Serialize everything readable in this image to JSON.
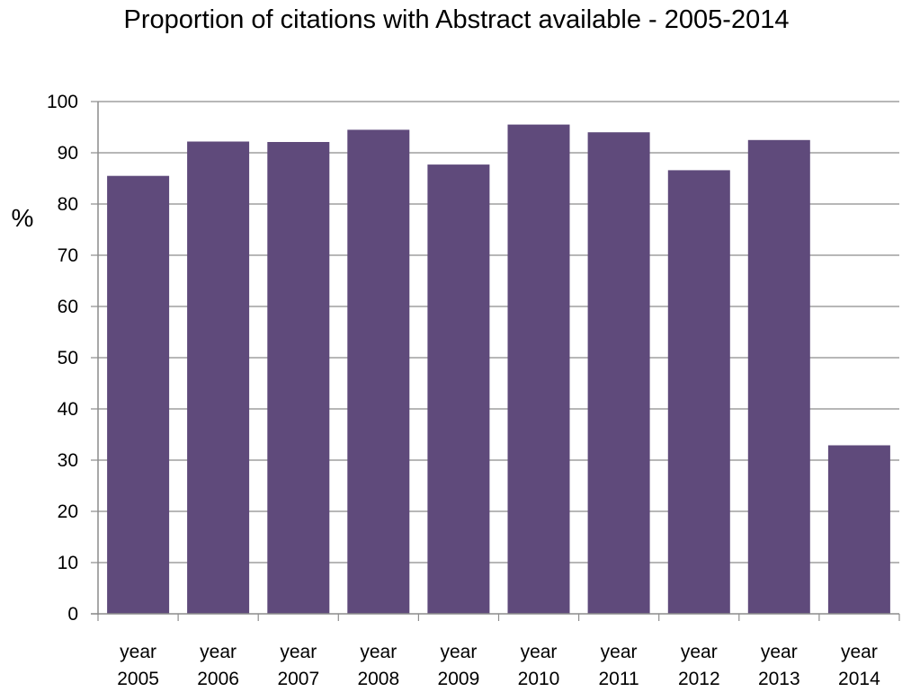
{
  "chart_data": {
    "type": "bar",
    "title": "Proportion of citations with Abstract available - 2005-2014",
    "xlabel": "",
    "ylabel": "%",
    "categories": [
      [
        "year",
        "2005"
      ],
      [
        "year",
        "2006"
      ],
      [
        "year",
        "2007"
      ],
      [
        "year",
        "2008"
      ],
      [
        "year",
        "2009"
      ],
      [
        "year",
        "2010"
      ],
      [
        "year",
        "2011"
      ],
      [
        "year",
        "2012"
      ],
      [
        "year",
        "2013"
      ],
      [
        "year",
        "2014"
      ]
    ],
    "values": [
      85.5,
      92.2,
      92.1,
      94.5,
      87.7,
      95.5,
      94.0,
      86.6,
      92.5,
      32.9
    ],
    "ylim": [
      0,
      100
    ],
    "yticks": [
      "0",
      "10",
      "20",
      "30",
      "40",
      "50",
      "60",
      "70",
      "80",
      "90",
      "100"
    ],
    "grid": true,
    "bar_color": "#5f4a7b"
  }
}
